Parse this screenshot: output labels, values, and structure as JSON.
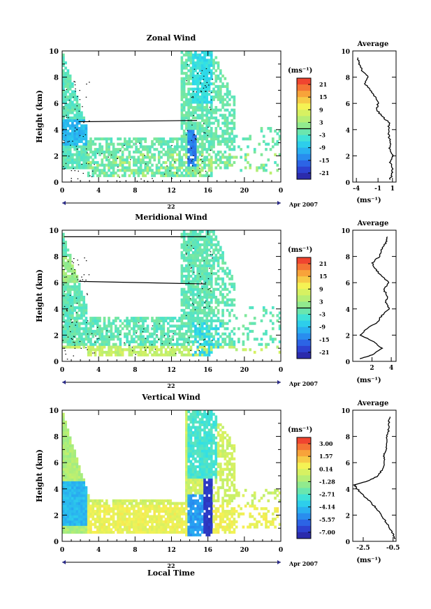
{
  "chart_data": [
    {
      "type": "heatmap",
      "title": "Zonal Wind",
      "ylabel": "Height (km)",
      "xlabel": "",
      "ylim": [
        0,
        10
      ],
      "x_ticks": [
        "0",
        "4",
        "8",
        "12",
        "16",
        "20",
        "0"
      ],
      "date_label": "22",
      "month_label": "Apr 2007",
      "colorbar": {
        "unit": "(ms⁻¹)",
        "ticks": [
          "21",
          "15",
          "9",
          "3",
          "-3",
          "-9",
          "-15",
          "-21"
        ],
        "range": [
          -24,
          24
        ]
      },
      "contour_segments": [
        {
          "x": [
            1.8,
            14.8
          ],
          "y": [
            4.6,
            4.7
          ]
        }
      ],
      "profile": {
        "title": "Average",
        "xlabel": "(ms⁻¹)",
        "x_ticks": [
          "-4",
          "-1",
          "1"
        ],
        "xlim": [
          -4.5,
          1.5
        ],
        "heights": [
          0.2,
          0.5,
          1.0,
          1.5,
          2.0,
          2.5,
          3.0,
          3.5,
          4.0,
          4.5,
          5.0,
          5.5,
          6.0,
          6.5,
          7.0,
          7.5,
          8.0,
          8.5,
          9.0,
          9.5
        ],
        "values": [
          0.6,
          0.9,
          1.0,
          0.7,
          1.0,
          0.6,
          0.7,
          0.5,
          0.4,
          0.6,
          -0.4,
          -1.2,
          -1.0,
          -1.4,
          -2.0,
          -2.8,
          -2.4,
          -3.2,
          -3.6,
          -3.8
        ]
      }
    },
    {
      "type": "heatmap",
      "title": "Meridional Wind",
      "ylabel": "Height (km)",
      "xlabel": "",
      "ylim": [
        0,
        10
      ],
      "x_ticks": [
        "0",
        "4",
        "8",
        "12",
        "16",
        "20",
        "0"
      ],
      "date_label": "22",
      "month_label": "Apr 2007",
      "colorbar": {
        "unit": "(ms⁻¹)",
        "ticks": [
          "21",
          "15",
          "9",
          "3",
          "-3",
          "-9",
          "-15",
          "-21"
        ],
        "range": [
          -24,
          24
        ]
      },
      "contour_segments": [
        {
          "x": [
            0.2,
            15.8
          ],
          "y": [
            9.5,
            9.5
          ]
        },
        {
          "x": [
            1.8,
            15.8
          ],
          "y": [
            6.1,
            5.9
          ]
        }
      ],
      "profile": {
        "title": "Average",
        "xlabel": "(ms⁻¹)",
        "x_ticks": [
          "2",
          "4"
        ],
        "xlim": [
          0,
          4.5
        ],
        "heights": [
          0.2,
          0.5,
          1.0,
          1.5,
          2.0,
          2.5,
          3.0,
          3.5,
          4.0,
          4.5,
          5.0,
          5.5,
          6.0,
          6.5,
          7.0,
          7.5,
          8.0,
          8.5,
          9.0,
          9.5
        ],
        "values": [
          0.8,
          2.0,
          3.0,
          2.2,
          0.7,
          1.5,
          2.6,
          3.0,
          3.8,
          3.4,
          3.6,
          3.2,
          3.8,
          3.0,
          2.4,
          2.0,
          2.8,
          3.0,
          3.4,
          3.6
        ]
      }
    },
    {
      "type": "heatmap",
      "title": "Vertical Wind",
      "ylabel": "Height (km)",
      "xlabel": "Local Time",
      "ylim": [
        0,
        10
      ],
      "x_ticks": [
        "0",
        "4",
        "8",
        "12",
        "16",
        "20",
        "0"
      ],
      "date_label": "22",
      "month_label": "Apr 2007",
      "colorbar": {
        "unit": "(ms⁻¹)",
        "ticks": [
          "3.00",
          "1.57",
          "0.14",
          "-1.28",
          "-2.71",
          "-4.14",
          "-5.57",
          "-7.00"
        ],
        "range": [
          -7.7,
          3.7
        ]
      },
      "contour_segments": [],
      "profile": {
        "title": "Average",
        "xlabel": "(ms⁻¹)",
        "x_ticks": [
          "-2.5",
          "-0.5"
        ],
        "xlim": [
          -3.2,
          -0.3
        ],
        "heights": [
          0.2,
          0.5,
          1.0,
          1.5,
          2.0,
          2.5,
          3.0,
          3.5,
          4.0,
          4.3,
          4.6,
          5.0,
          5.5,
          6.0,
          6.5,
          7.0,
          7.5,
          8.0,
          8.5,
          9.0,
          9.5
        ],
        "values": [
          -0.4,
          -0.5,
          -0.7,
          -1.0,
          -1.3,
          -1.6,
          -2.0,
          -2.5,
          -2.9,
          -3.1,
          -2.2,
          -1.5,
          -1.2,
          -1.1,
          -1.1,
          -1.0,
          -0.9,
          -0.9,
          -0.8,
          -0.8,
          -0.7
        ]
      }
    }
  ]
}
